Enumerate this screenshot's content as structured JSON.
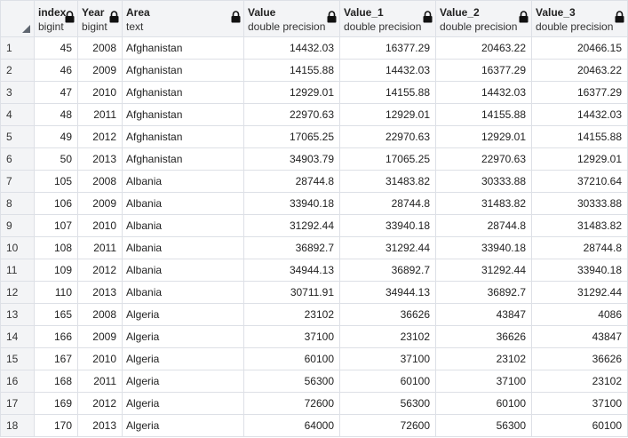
{
  "columns": [
    {
      "name": "index",
      "type": "bigint"
    },
    {
      "name": "Year",
      "type": "bigint"
    },
    {
      "name": "Area",
      "type": "text"
    },
    {
      "name": "Value",
      "type": "double precision"
    },
    {
      "name": "Value_1",
      "type": "double precision"
    },
    {
      "name": "Value_2",
      "type": "double precision"
    },
    {
      "name": "Value_3",
      "type": "double precision"
    }
  ],
  "rows": [
    {
      "n": "1",
      "cells": [
        "45",
        "2008",
        "Afghanistan",
        "14432.03",
        "16377.29",
        "20463.22",
        "20466.15"
      ]
    },
    {
      "n": "2",
      "cells": [
        "46",
        "2009",
        "Afghanistan",
        "14155.88",
        "14432.03",
        "16377.29",
        "20463.22"
      ]
    },
    {
      "n": "3",
      "cells": [
        "47",
        "2010",
        "Afghanistan",
        "12929.01",
        "14155.88",
        "14432.03",
        "16377.29"
      ]
    },
    {
      "n": "4",
      "cells": [
        "48",
        "2011",
        "Afghanistan",
        "22970.63",
        "12929.01",
        "14155.88",
        "14432.03"
      ]
    },
    {
      "n": "5",
      "cells": [
        "49",
        "2012",
        "Afghanistan",
        "17065.25",
        "22970.63",
        "12929.01",
        "14155.88"
      ]
    },
    {
      "n": "6",
      "cells": [
        "50",
        "2013",
        "Afghanistan",
        "34903.79",
        "17065.25",
        "22970.63",
        "12929.01"
      ]
    },
    {
      "n": "7",
      "cells": [
        "105",
        "2008",
        "Albania",
        "28744.8",
        "31483.82",
        "30333.88",
        "37210.64"
      ]
    },
    {
      "n": "8",
      "cells": [
        "106",
        "2009",
        "Albania",
        "33940.18",
        "28744.8",
        "31483.82",
        "30333.88"
      ]
    },
    {
      "n": "9",
      "cells": [
        "107",
        "2010",
        "Albania",
        "31292.44",
        "33940.18",
        "28744.8",
        "31483.82"
      ]
    },
    {
      "n": "10",
      "cells": [
        "108",
        "2011",
        "Albania",
        "36892.7",
        "31292.44",
        "33940.18",
        "28744.8"
      ]
    },
    {
      "n": "11",
      "cells": [
        "109",
        "2012",
        "Albania",
        "34944.13",
        "36892.7",
        "31292.44",
        "33940.18"
      ]
    },
    {
      "n": "12",
      "cells": [
        "110",
        "2013",
        "Albania",
        "30711.91",
        "34944.13",
        "36892.7",
        "31292.44"
      ]
    },
    {
      "n": "13",
      "cells": [
        "165",
        "2008",
        "Algeria",
        "23102",
        "36626",
        "43847",
        "4086"
      ]
    },
    {
      "n": "14",
      "cells": [
        "166",
        "2009",
        "Algeria",
        "37100",
        "23102",
        "36626",
        "43847"
      ]
    },
    {
      "n": "15",
      "cells": [
        "167",
        "2010",
        "Algeria",
        "60100",
        "37100",
        "23102",
        "36626"
      ]
    },
    {
      "n": "16",
      "cells": [
        "168",
        "2011",
        "Algeria",
        "56300",
        "60100",
        "37100",
        "23102"
      ]
    },
    {
      "n": "17",
      "cells": [
        "169",
        "2012",
        "Algeria",
        "72600",
        "56300",
        "60100",
        "37100"
      ]
    },
    {
      "n": "18",
      "cells": [
        "170",
        "2013",
        "Algeria",
        "64000",
        "72600",
        "56300",
        "60100"
      ]
    }
  ],
  "icons": {
    "lock": "lock-icon",
    "select_all": "select-all-corner-icon"
  },
  "colors": {
    "header_bg": "#f3f4f6",
    "border": "#dde0e6",
    "text": "#222222"
  }
}
